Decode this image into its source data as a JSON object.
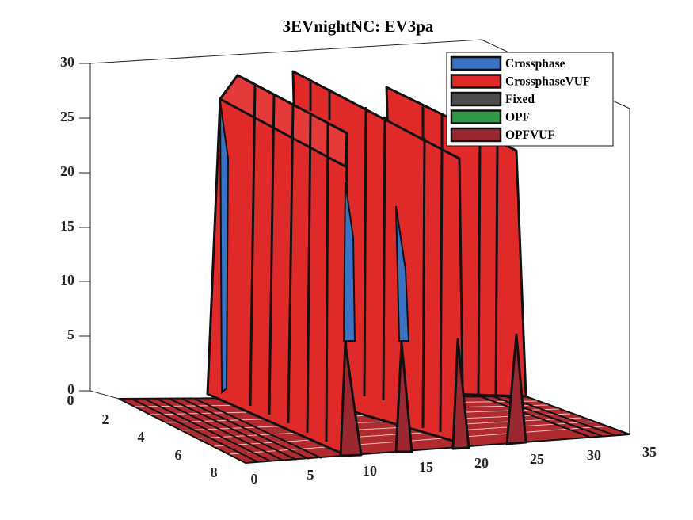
{
  "chart_data": {
    "type": "bar3d",
    "title": "3EVnightNC: EV3pa",
    "xlabel": "",
    "ylabel": "",
    "zlabel": "",
    "xlim": [
      0,
      35
    ],
    "ylim": [
      0,
      8
    ],
    "zlim": [
      0,
      30
    ],
    "x_ticks": [
      "0",
      "5",
      "10",
      "15",
      "20",
      "25",
      "30",
      "35"
    ],
    "y_ticks": [
      "0",
      "2",
      "4",
      "6",
      "8"
    ],
    "z_ticks": [
      "0",
      "5",
      "10",
      "15",
      "20",
      "25",
      "30"
    ],
    "legend_position": "top-right",
    "series": [
      {
        "name": "Crossphase",
        "color": "#3a73c4",
        "values": [
          0,
          0,
          26.5,
          0,
          0,
          0,
          0,
          0,
          0,
          0,
          0,
          0,
          0,
          0,
          0,
          0,
          0,
          0,
          0,
          0,
          0,
          0,
          0,
          0,
          0,
          0,
          0,
          0,
          0,
          0,
          0,
          0,
          0
        ]
      },
      {
        "name": "CrossphaseVUF",
        "color": "#e02a2a",
        "values": [
          0,
          0,
          26.5,
          26.5,
          26.5,
          26.5,
          26.5,
          26.5,
          26.5,
          26.5,
          26.5,
          26.5,
          26.5,
          26.5,
          26.5,
          26.5,
          26.5,
          26.5,
          26.5,
          26.5,
          26.5,
          26.5,
          26.5,
          26.5,
          26.5,
          26.5,
          26.5,
          26.5,
          26.5,
          0,
          0,
          0,
          0
        ]
      },
      {
        "name": "Fixed",
        "color": "#4d4d4d",
        "values": []
      },
      {
        "name": "OPF",
        "color": "#2e9a46",
        "values": []
      },
      {
        "name": "OPFVUF",
        "color": "#9b2730",
        "values": [
          0,
          0,
          0,
          0,
          0,
          0,
          0,
          0,
          0,
          0,
          0,
          0,
          5,
          0,
          0,
          0,
          0,
          0,
          5,
          0,
          0,
          0,
          0,
          0,
          5,
          0,
          0,
          0,
          0,
          5,
          0,
          0,
          0
        ]
      }
    ]
  }
}
